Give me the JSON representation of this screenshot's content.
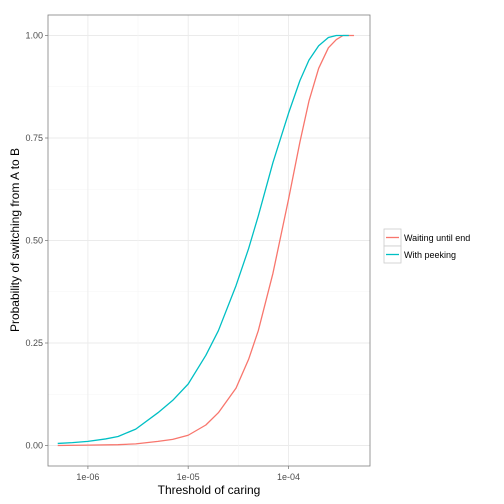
{
  "chart_data": {
    "type": "line",
    "title": "",
    "xlabel": "Threshold of caring",
    "ylabel": "Probability of switching from A to B",
    "x_scale": "log10",
    "xlim": [
      4e-07,
      0.00065
    ],
    "ylim": [
      -0.05,
      1.05
    ],
    "x_ticks": [
      {
        "value": 1e-06,
        "label": "1e-06"
      },
      {
        "value": 1e-05,
        "label": "1e-05"
      },
      {
        "value": 0.0001,
        "label": "1e-04"
      }
    ],
    "y_ticks": [
      {
        "value": 0.0,
        "label": "0.00"
      },
      {
        "value": 0.25,
        "label": "0.25"
      },
      {
        "value": 0.5,
        "label": "0.50"
      },
      {
        "value": 0.75,
        "label": "0.75"
      },
      {
        "value": 1.0,
        "label": "1.00"
      }
    ],
    "grid": true,
    "legend_position": "right",
    "series": [
      {
        "name": "Waiting until end",
        "color": "#F8766D",
        "x": [
          5e-07,
          1e-06,
          2e-06,
          3e-06,
          5e-06,
          7e-06,
          1e-05,
          1.5e-05,
          2e-05,
          3e-05,
          4e-05,
          5e-05,
          7e-05,
          0.0001,
          0.00013,
          0.00016,
          0.0002,
          0.00025,
          0.0003,
          0.00035,
          0.0004,
          0.00045
        ],
        "y": [
          0.0,
          0.001,
          0.002,
          0.004,
          0.01,
          0.015,
          0.025,
          0.05,
          0.08,
          0.14,
          0.21,
          0.28,
          0.42,
          0.6,
          0.74,
          0.84,
          0.92,
          0.97,
          0.99,
          1.0,
          1.0,
          1.0
        ]
      },
      {
        "name": "With peeking",
        "color": "#00BFC4",
        "x": [
          5e-07,
          7e-07,
          1e-06,
          1.5e-06,
          2e-06,
          3e-06,
          5e-06,
          7e-06,
          1e-05,
          1.5e-05,
          2e-05,
          3e-05,
          4e-05,
          5e-05,
          7e-05,
          0.0001,
          0.00013,
          0.00016,
          0.0002,
          0.00025,
          0.0003,
          0.00035,
          0.0004
        ],
        "y": [
          0.005,
          0.007,
          0.01,
          0.016,
          0.022,
          0.04,
          0.08,
          0.11,
          0.15,
          0.22,
          0.28,
          0.39,
          0.48,
          0.56,
          0.69,
          0.81,
          0.89,
          0.94,
          0.975,
          0.995,
          1.0,
          1.0,
          1.0
        ]
      }
    ]
  }
}
